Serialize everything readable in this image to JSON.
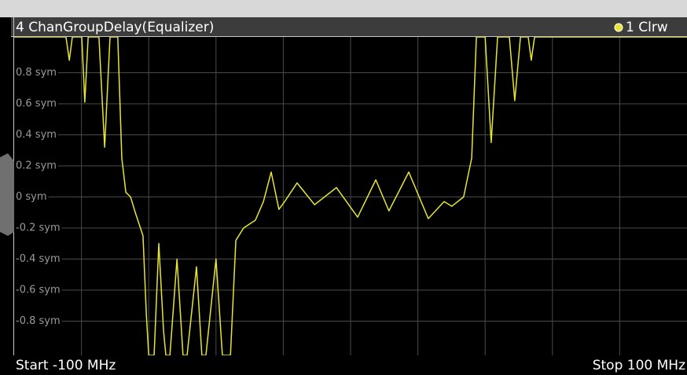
{
  "chart_data": {
    "type": "line",
    "title": "4 ChanGroupDelay(Equalizer)",
    "start_label": "Start -100 MHz",
    "stop_label": "Stop 100 MHz",
    "x": [
      -100,
      -84.6,
      -83.6,
      -82.7,
      -79.9,
      -79.0,
      -78.0,
      -74.8,
      -73.1,
      -71.5,
      -69.2,
      -68.0,
      -66.8,
      -65.4,
      -64.0,
      -61.7,
      -60.7,
      -60.0,
      -58.4,
      -57.0,
      -55.6,
      -54.9,
      -53.7,
      -51.6,
      -49.8,
      -48.6,
      -45.8,
      -44.2,
      -43.0,
      -40.0,
      -38.1,
      -35.7,
      -34.1,
      -31.8,
      -28.3,
      -25.9,
      -23.6,
      -21.3,
      -19.6,
      -15.9,
      -10.7,
      -4.2,
      2.1,
      7.5,
      11.4,
      17.3,
      23.1,
      27.8,
      30.1,
      33.6,
      36.0,
      37.4,
      40.0,
      41.8,
      43.7,
      47.2,
      48.8,
      50.5,
      52.8,
      53.7,
      54.7,
      100
    ],
    "series": [
      {
        "name": "1 Clrw",
        "color": "#e6e632",
        "values": [
          1.03,
          1.03,
          0.88,
          1.03,
          1.03,
          0.61,
          1.03,
          1.03,
          0.32,
          1.03,
          1.03,
          0.25,
          0.03,
          0.0,
          -0.1,
          -0.25,
          -0.76,
          -1.02,
          -1.02,
          -0.3,
          -0.86,
          -1.02,
          -1.02,
          -0.4,
          -1.02,
          -1.02,
          -0.45,
          -1.02,
          -1.02,
          -0.4,
          -1.02,
          -1.02,
          -0.28,
          -0.2,
          -0.15,
          -0.03,
          0.16,
          -0.08,
          -0.03,
          0.09,
          -0.05,
          0.06,
          -0.13,
          0.11,
          -0.09,
          0.16,
          -0.14,
          -0.03,
          -0.06,
          0.0,
          0.25,
          1.03,
          1.03,
          0.35,
          1.03,
          1.03,
          0.62,
          1.03,
          1.03,
          0.88,
          1.03,
          1.03
        ]
      }
    ],
    "xlim": [
      -100,
      100
    ],
    "ylim": [
      -1.02,
      1.03
    ],
    "yticks": [
      {
        "value": -0.8,
        "label": "-0.8 sym"
      },
      {
        "value": -0.6,
        "label": "-0.6 sym"
      },
      {
        "value": -0.4,
        "label": "-0.4 sym"
      },
      {
        "value": -0.2,
        "label": "-0.2 sym"
      },
      {
        "value": 0,
        "label": "0 sym"
      },
      {
        "value": 0.2,
        "label": "0.2 sym"
      },
      {
        "value": 0.4,
        "label": "0.4 sym"
      },
      {
        "value": 0.6,
        "label": "0.6 sym"
      },
      {
        "value": 0.8,
        "label": "0.8 sym"
      }
    ],
    "grid": true
  }
}
